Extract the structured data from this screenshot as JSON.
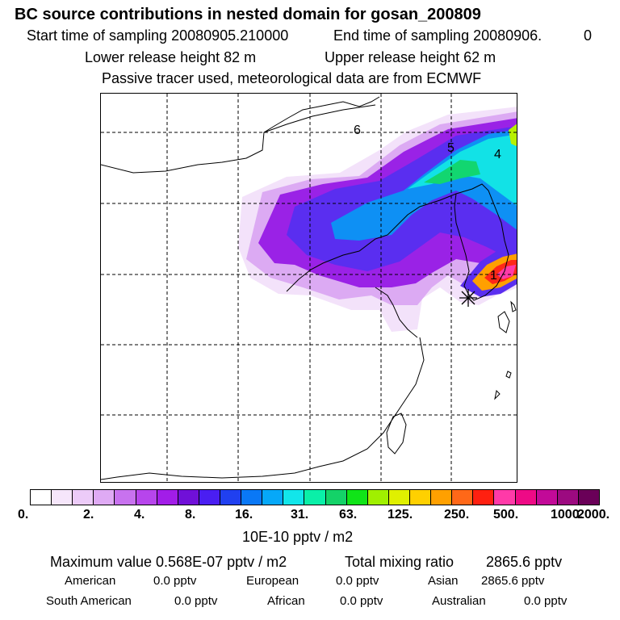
{
  "header": {
    "title": "BC  source contributions in nested domain for gosan_200809",
    "start_label": "Start time of sampling 20080905.210000",
    "end_label": "End time of sampling 20080906.",
    "end_value": "0",
    "lower_release": "Lower release height   82 m",
    "upper_release": "Upper release height   62 m",
    "tracer_note": "Passive tracer used, meteorological data are from ECMWF"
  },
  "map": {
    "region_labels": [
      "6",
      "5",
      "4",
      "1"
    ],
    "receptor_marker": "asterisk",
    "grid": "dashed"
  },
  "colorbar": {
    "colors": [
      "#ffffff",
      "#f6e6fb",
      "#eccbf8",
      "#dfaaf4",
      "#c872ef",
      "#b745ec",
      "#a21de8",
      "#7010d8",
      "#4a1ef2",
      "#2040f0",
      "#0a78f6",
      "#06a8f8",
      "#12e6ea",
      "#0af0a8",
      "#14d268",
      "#10e418",
      "#a0f000",
      "#e0f000",
      "#ffd000",
      "#ffa000",
      "#ff6818",
      "#ff2010",
      "#ff3aa8",
      "#ee0a86",
      "#c20a98",
      "#9c0a80",
      "#6a0058"
    ],
    "tick_labels": [
      "0.",
      "2.",
      "4.",
      "8.",
      "16.",
      "31.",
      "63.",
      "125.",
      "250.",
      "500.",
      "1000.",
      "2000."
    ],
    "units": "10E-10 pptv / m2"
  },
  "stats": {
    "max_value": "Maximum value  0.568E-07 pptv / m2",
    "total_label": "Total mixing ratio",
    "total_value": "2865.6 pptv",
    "regions": [
      {
        "name": "American",
        "value": "0.0 pptv"
      },
      {
        "name": "European",
        "value": "0.0 pptv"
      },
      {
        "name": "Asian",
        "value": "2865.6 pptv"
      },
      {
        "name": "South American",
        "value": "0.0 pptv"
      },
      {
        "name": "African",
        "value": "0.0 pptv"
      },
      {
        "name": "Australian",
        "value": "0.0 pptv"
      }
    ]
  }
}
